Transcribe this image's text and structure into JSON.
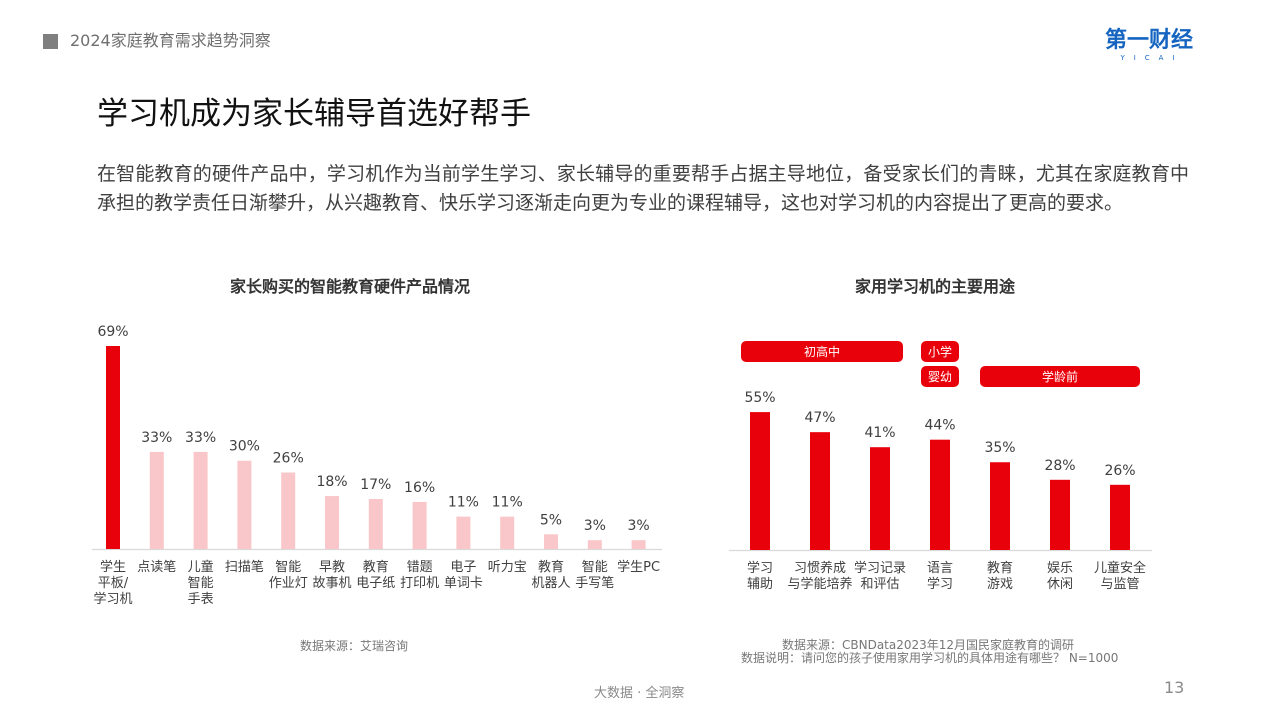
{
  "header": {
    "report_title": "2024家庭教育需求趋势洞察",
    "logo_text": "第一财经",
    "logo_sub": "YICAI",
    "logo_color": "#1565c0"
  },
  "main": {
    "heading": "学习机成为家长辅导首选好帮手",
    "intro": "在智能教育的硬件产品中，学习机作为当前学生学习、家长辅导的重要帮手占据主导地位，备受家长们的青睐，尤其在家庭教育中承担的教学责任日渐攀升，从兴趣教育、快乐学习逐渐走向更为专业的课程辅导，这也对学习机的内容提出了更高的要求。"
  },
  "colors": {
    "accent": "#e8000b",
    "accent_light": "#f9c7c9",
    "axis": "#d9d9d9"
  },
  "chart_data": [
    {
      "type": "bar",
      "title": "家长购买的智能教育硬件产品情况",
      "categories": [
        "学生\n平板/\n学习机",
        "点读笔",
        "儿童\n智能\n手表",
        "扫描笔",
        "智能\n作业灯",
        "早教\n故事机",
        "教育\n电子纸",
        "错题\n打印机",
        "电子\n单词卡",
        "听力宝",
        "教育\n机器人",
        "智能\n手写笔",
        "学生PC"
      ],
      "values": [
        69,
        33,
        33,
        30,
        26,
        18,
        17,
        16,
        11,
        11,
        5,
        3,
        3
      ],
      "value_labels": [
        "69%",
        "33%",
        "33%",
        "30%",
        "26%",
        "18%",
        "17%",
        "16%",
        "11%",
        "11%",
        "5%",
        "3%",
        "3%"
      ],
      "highlight_index": 0,
      "unit": "%",
      "ylim": [
        0,
        69
      ],
      "grid": false,
      "source": "数据来源：艾瑞咨询"
    },
    {
      "type": "bar",
      "title": "家用学习机的主要用途",
      "categories": [
        "学习\n辅助",
        "习惯养成\n与学能培养",
        "学习记录\n和评估",
        "语言\n学习",
        "教育\n游戏",
        "娱乐\n休闲",
        "儿童安全\n与监管"
      ],
      "values": [
        55,
        47,
        41,
        44,
        35,
        28,
        26
      ],
      "value_labels": [
        "55%",
        "47%",
        "41%",
        "44%",
        "35%",
        "28%",
        "26%"
      ],
      "unit": "%",
      "ylim": [
        0,
        69
      ],
      "grid": false,
      "annotations": [
        {
          "label": "初高中",
          "from": 0,
          "to": 2
        },
        {
          "label": "小学",
          "from": 3,
          "to": 3
        },
        {
          "label": "婴幼",
          "from": 3,
          "to": 3
        },
        {
          "label": "学龄前",
          "from": 4,
          "to": 6
        }
      ],
      "source_lines": [
        "数据来源：CBNData2023年12月国民家庭教育的调研",
        "数据说明：请问您的孩子使用家用学习机的具体用途有哪些？ N=1000"
      ]
    }
  ],
  "footer": {
    "tagline": "大数据 · 全洞察",
    "page_number": "13"
  }
}
